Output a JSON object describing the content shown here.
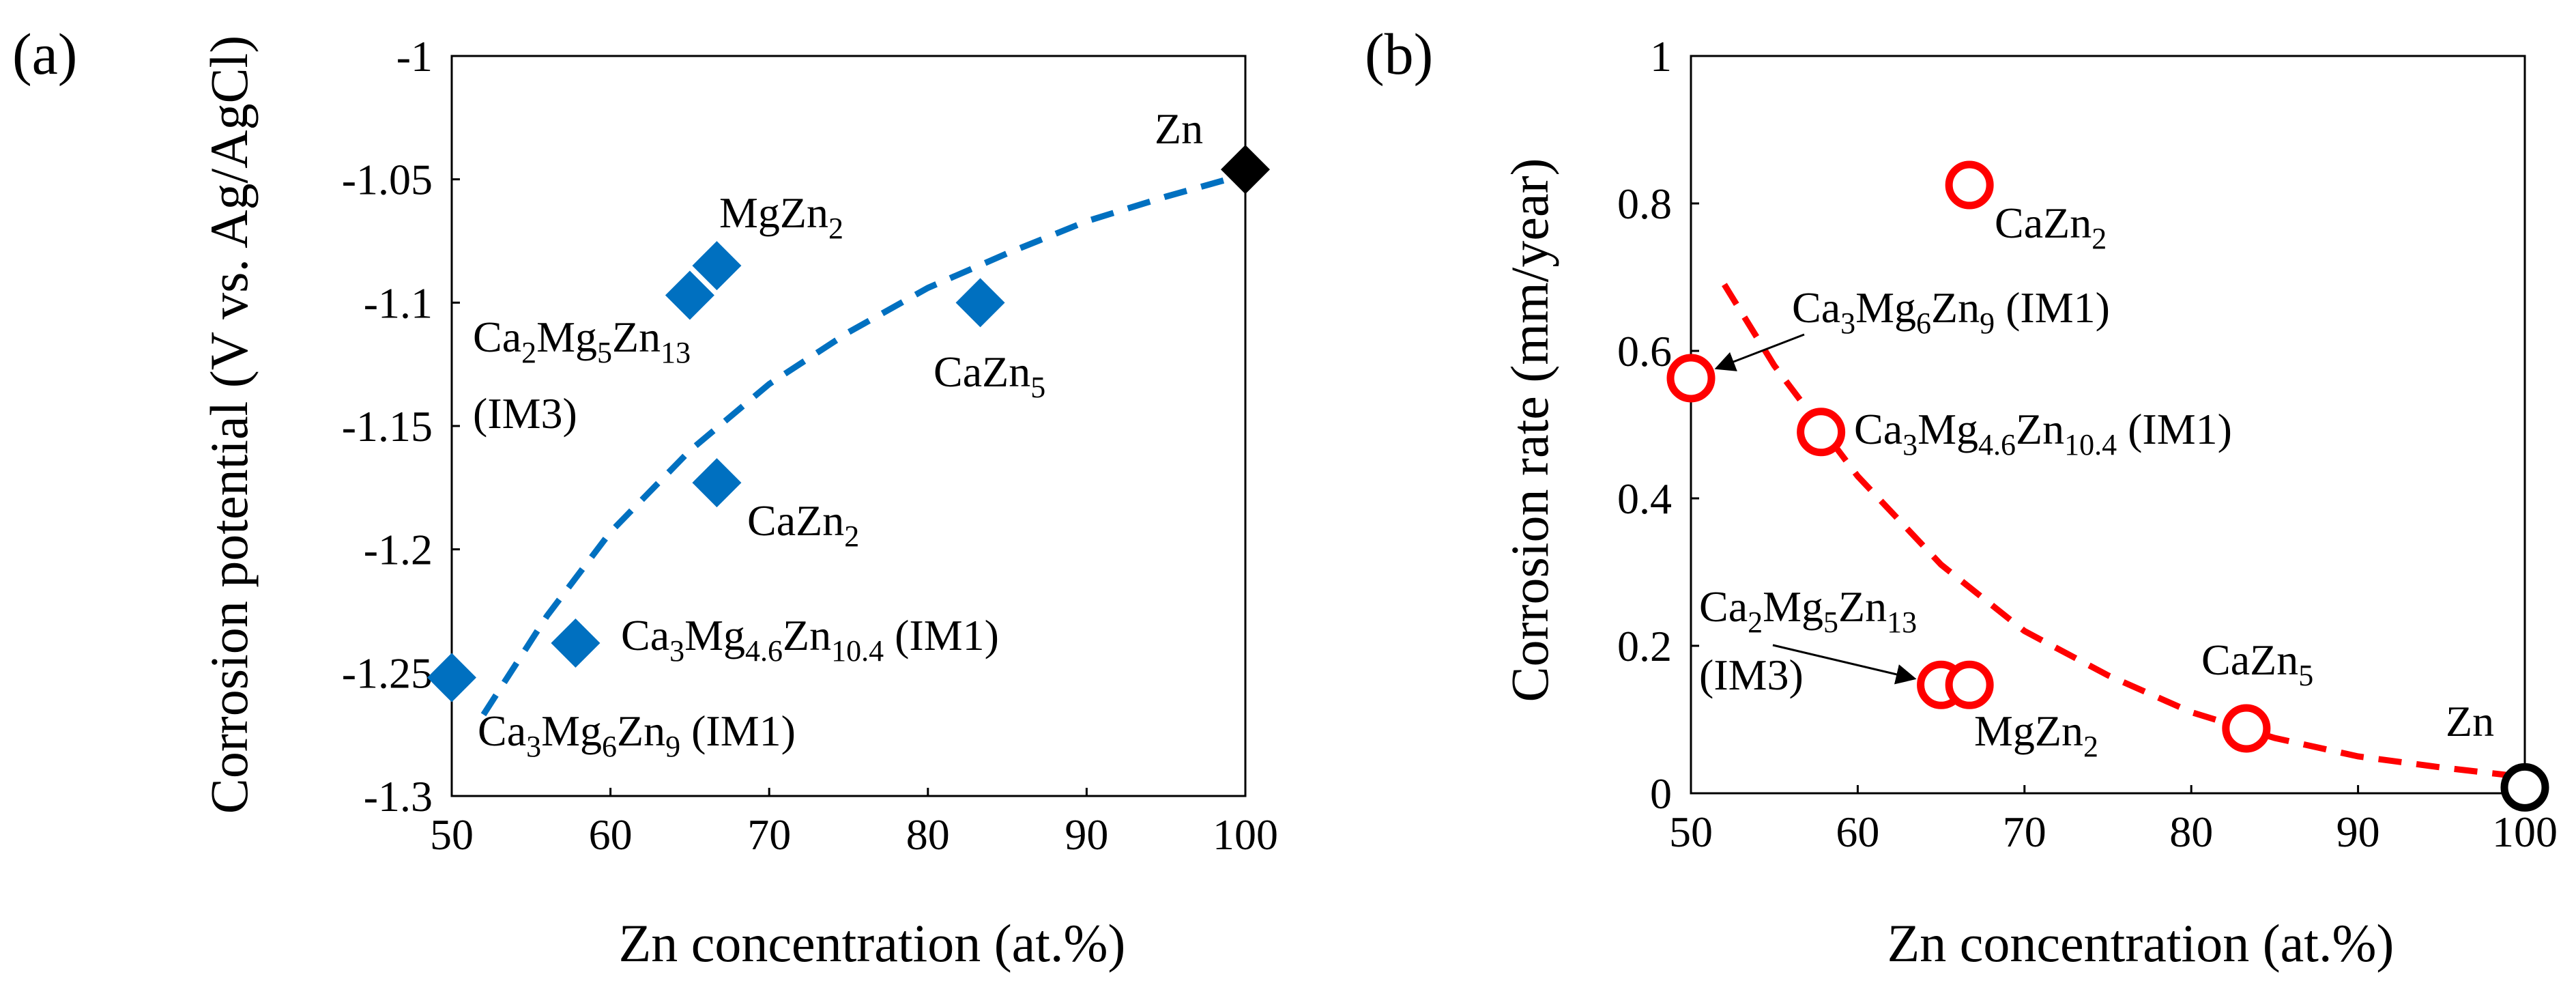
{
  "chart_data": [
    {
      "panel": "(a)",
      "type": "scatter",
      "xlabel": "Zn concentration (at.%)",
      "ylabel": "Corrosion potential (V vs. Ag/AgCl)",
      "xlim": [
        50,
        100
      ],
      "ylim": [
        -1.3,
        -1.0
      ],
      "xticks": [
        "50",
        "60",
        "70",
        "80",
        "90",
        "100"
      ],
      "yticks": [
        "-1.3",
        "-1.25",
        "-1.2",
        "-1.15",
        "-1.1",
        "-1.05",
        "-1"
      ],
      "marker": "diamond",
      "colors": {
        "compound": "#0070c0",
        "zn": "#000000",
        "trend": "#0070c0"
      },
      "points": [
        {
          "name": "Ca3Mg6Zn9 (IM1)",
          "x": 50,
          "y": -1.252,
          "color": "#0070c0"
        },
        {
          "name": "Ca3Mg4.6Zn10.4 (IM1)",
          "x": 57.8,
          "y": -1.238,
          "color": "#0070c0"
        },
        {
          "name": "Ca2Mg5Zn13 (IM3)",
          "x": 65,
          "y": -1.097,
          "color": "#0070c0"
        },
        {
          "name": "MgZn2",
          "x": 66.7,
          "y": -1.085,
          "color": "#0070c0"
        },
        {
          "name": "CaZn2",
          "x": 66.7,
          "y": -1.173,
          "color": "#0070c0"
        },
        {
          "name": "CaZn5",
          "x": 83.3,
          "y": -1.1,
          "color": "#0070c0"
        },
        {
          "name": "Zn",
          "x": 100,
          "y": -1.046,
          "color": "#000000"
        }
      ],
      "trend": {
        "style": "dashed",
        "x": [
          52,
          56,
          60,
          65,
          70,
          75,
          80,
          85,
          90,
          95,
          100
        ],
        "y": [
          -1.267,
          -1.227,
          -1.193,
          -1.16,
          -1.133,
          -1.112,
          -1.094,
          -1.08,
          -1.067,
          -1.057,
          -1.048
        ]
      },
      "labels": [
        {
          "id": "zn",
          "parts": [
            {
              "t": "Zn"
            }
          ]
        },
        {
          "id": "mgzn2",
          "parts": [
            {
              "t": "MgZn"
            },
            {
              "t": "2",
              "sub": true
            }
          ]
        },
        {
          "id": "ca2mg5zn13",
          "parts": [
            {
              "t": "Ca"
            },
            {
              "t": "2",
              "sub": true
            },
            {
              "t": "Mg"
            },
            {
              "t": "5",
              "sub": true
            },
            {
              "t": "Zn"
            },
            {
              "t": "13",
              "sub": true
            }
          ]
        },
        {
          "id": "im3",
          "parts": [
            {
              "t": "(IM3)"
            }
          ]
        },
        {
          "id": "cazn5",
          "parts": [
            {
              "t": "CaZn"
            },
            {
              "t": "5",
              "sub": true
            }
          ]
        },
        {
          "id": "cazn2",
          "parts": [
            {
              "t": "CaZn"
            },
            {
              "t": "2",
              "sub": true
            }
          ]
        },
        {
          "id": "ca3mg46",
          "parts": [
            {
              "t": "Ca"
            },
            {
              "t": "3",
              "sub": true
            },
            {
              "t": "Mg"
            },
            {
              "t": "4.6",
              "sub": true
            },
            {
              "t": "Zn"
            },
            {
              "t": "10.4",
              "sub": true
            },
            {
              "t": " (IM1)"
            }
          ]
        },
        {
          "id": "ca3mg6zn9",
          "parts": [
            {
              "t": "Ca"
            },
            {
              "t": "3",
              "sub": true
            },
            {
              "t": "Mg"
            },
            {
              "t": "6",
              "sub": true
            },
            {
              "t": "Zn"
            },
            {
              "t": "9",
              "sub": true
            },
            {
              "t": " (IM1)"
            }
          ]
        }
      ]
    },
    {
      "panel": "(b)",
      "type": "scatter",
      "xlabel": "Zn concentration (at.%)",
      "ylabel": "Corrosion rate (mm/year)",
      "xlim": [
        50,
        100
      ],
      "ylim": [
        0,
        1
      ],
      "xticks": [
        "50",
        "60",
        "70",
        "80",
        "90",
        "100"
      ],
      "yticks": [
        "0",
        "0.2",
        "0.4",
        "0.6",
        "0.8",
        "1"
      ],
      "marker": "open-circle",
      "colors": {
        "compound": "#ff0000",
        "zn": "#000000",
        "trend": "#ff0000"
      },
      "points": [
        {
          "name": "Ca3Mg6Zn9 (IM1)",
          "x": 50,
          "y": 0.563,
          "color": "#ff0000"
        },
        {
          "name": "Ca3Mg4.6Zn10.4 (IM1)",
          "x": 57.8,
          "y": 0.49,
          "color": "#ff0000"
        },
        {
          "name": "Ca2Mg5Zn13 (IM3)",
          "x": 65,
          "y": 0.147,
          "color": "#ff0000"
        },
        {
          "name": "MgZn2",
          "x": 66.7,
          "y": 0.147,
          "color": "#ff0000"
        },
        {
          "name": "CaZn2",
          "x": 66.7,
          "y": 0.825,
          "color": "#ff0000"
        },
        {
          "name": "CaZn5",
          "x": 83.3,
          "y": 0.088,
          "color": "#ff0000"
        },
        {
          "name": "Zn",
          "x": 100,
          "y": 0.008,
          "color": "#000000"
        }
      ],
      "trend": {
        "style": "dashed",
        "x": [
          52,
          55,
          60,
          65,
          70,
          75,
          80,
          85,
          90,
          95,
          100
        ],
        "y": [
          0.69,
          0.58,
          0.43,
          0.31,
          0.22,
          0.16,
          0.11,
          0.075,
          0.05,
          0.035,
          0.022
        ]
      },
      "labels": [
        {
          "id": "cazn2",
          "parts": [
            {
              "t": "CaZn"
            },
            {
              "t": "2",
              "sub": true
            }
          ]
        },
        {
          "id": "ca3mg6zn9",
          "parts": [
            {
              "t": "Ca"
            },
            {
              "t": "3",
              "sub": true
            },
            {
              "t": "Mg"
            },
            {
              "t": "6",
              "sub": true
            },
            {
              "t": "Zn"
            },
            {
              "t": "9",
              "sub": true
            },
            {
              "t": " (IM1)"
            }
          ]
        },
        {
          "id": "ca3mg46",
          "parts": [
            {
              "t": "Ca"
            },
            {
              "t": "3",
              "sub": true
            },
            {
              "t": "Mg"
            },
            {
              "t": "4.6",
              "sub": true
            },
            {
              "t": "Zn"
            },
            {
              "t": "10.4",
              "sub": true
            },
            {
              "t": " (IM1)"
            }
          ]
        },
        {
          "id": "ca2mg5zn13",
          "parts": [
            {
              "t": "Ca"
            },
            {
              "t": "2",
              "sub": true
            },
            {
              "t": "Mg"
            },
            {
              "t": "5",
              "sub": true
            },
            {
              "t": "Zn"
            },
            {
              "t": "13",
              "sub": true
            }
          ]
        },
        {
          "id": "im3",
          "parts": [
            {
              "t": "(IM3)"
            }
          ]
        },
        {
          "id": "cazn5",
          "parts": [
            {
              "t": "CaZn"
            },
            {
              "t": "5",
              "sub": true
            }
          ]
        },
        {
          "id": "mgzn2",
          "parts": [
            {
              "t": "MgZn"
            },
            {
              "t": "2",
              "sub": true
            }
          ]
        },
        {
          "id": "zn",
          "parts": [
            {
              "t": "Zn"
            }
          ]
        }
      ]
    }
  ]
}
